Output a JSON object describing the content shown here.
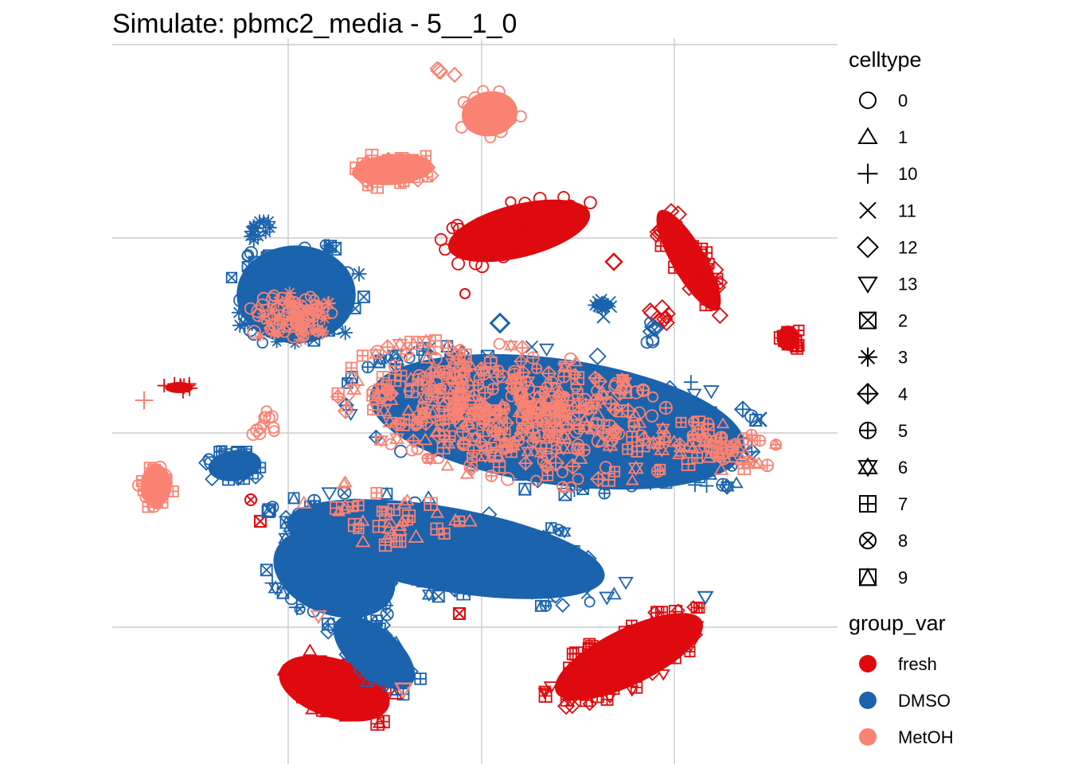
{
  "chart_data": {
    "type": "scatter",
    "title": "Simulate: pbmc2_media - 5__1_0",
    "xlabel": "",
    "ylabel": "",
    "grid": true,
    "legend_position": "right",
    "legends": [
      {
        "title": "celltype",
        "kind": "shape",
        "entries": [
          {
            "label": "0",
            "shape": "circle"
          },
          {
            "label": "1",
            "shape": "triangle-up"
          },
          {
            "label": "10",
            "shape": "plus"
          },
          {
            "label": "11",
            "shape": "cross"
          },
          {
            "label": "12",
            "shape": "diamond"
          },
          {
            "label": "13",
            "shape": "triangle-down"
          },
          {
            "label": "2",
            "shape": "square-cross"
          },
          {
            "label": "3",
            "shape": "asterisk"
          },
          {
            "label": "4",
            "shape": "diamond-plus"
          },
          {
            "label": "5",
            "shape": "circle-plus"
          },
          {
            "label": "6",
            "shape": "star-of-david"
          },
          {
            "label": "7",
            "shape": "square-plus"
          },
          {
            "label": "8",
            "shape": "circle-cross"
          },
          {
            "label": "9",
            "shape": "square-triangle"
          }
        ]
      },
      {
        "title": "group_var",
        "kind": "color",
        "entries": [
          {
            "label": "fresh",
            "color": "#de0a0f"
          },
          {
            "label": "DMSO",
            "color": "#1b63ad"
          },
          {
            "label": "MetOH",
            "color": "#f98272"
          }
        ]
      }
    ],
    "series": [
      {
        "name": "fresh",
        "color": "#de0a0f"
      },
      {
        "name": "DMSO",
        "color": "#1b63ad"
      },
      {
        "name": "MetOH",
        "color": "#f98272"
      }
    ]
  }
}
